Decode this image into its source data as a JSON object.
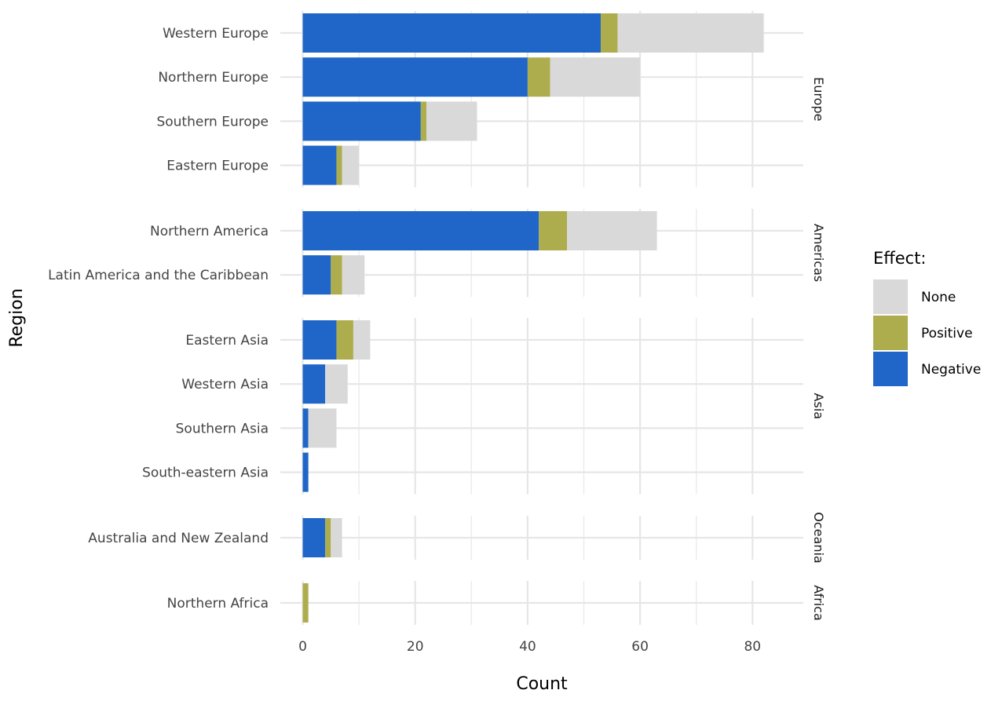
{
  "chart_data": {
    "type": "bar",
    "orientation": "horizontal",
    "stacked": true,
    "title": "",
    "xlabel": "Count",
    "ylabel": "Region",
    "xlim": [
      0,
      89
    ],
    "xticks": [
      0,
      20,
      40,
      60,
      80
    ],
    "grid": true,
    "legend": {
      "title": "Effect:",
      "placement": "right",
      "entries": [
        {
          "key": "none",
          "label": "None",
          "color": "#d9d9d9"
        },
        {
          "key": "positive",
          "label": "Positive",
          "color": "#adad4e"
        },
        {
          "key": "negative",
          "label": "Negative",
          "color": "#1f66c8"
        }
      ]
    },
    "stack_order": [
      "negative",
      "positive",
      "none"
    ],
    "facets": [
      {
        "label": "Europe",
        "rows": [
          {
            "category": "Western Europe",
            "negative": 53,
            "positive": 3,
            "none": 26
          },
          {
            "category": "Northern Europe",
            "negative": 40,
            "positive": 4,
            "none": 16
          },
          {
            "category": "Southern Europe",
            "negative": 21,
            "positive": 1,
            "none": 9
          },
          {
            "category": "Eastern Europe",
            "negative": 6,
            "positive": 1,
            "none": 3
          }
        ]
      },
      {
        "label": "Americas",
        "rows": [
          {
            "category": "Northern America",
            "negative": 42,
            "positive": 5,
            "none": 16
          },
          {
            "category": "Latin America and the Caribbean",
            "negative": 5,
            "positive": 2,
            "none": 4
          }
        ]
      },
      {
        "label": "Asia",
        "rows": [
          {
            "category": "Eastern Asia",
            "negative": 6,
            "positive": 3,
            "none": 3
          },
          {
            "category": "Western Asia",
            "negative": 4,
            "positive": 0,
            "none": 4
          },
          {
            "category": "Southern Asia",
            "negative": 1,
            "positive": 0,
            "none": 5
          },
          {
            "category": "South-eastern Asia",
            "negative": 1,
            "positive": 0,
            "none": 0
          }
        ]
      },
      {
        "label": "Oceania",
        "rows": [
          {
            "category": "Australia and New Zealand",
            "negative": 4,
            "positive": 1,
            "none": 2
          }
        ]
      },
      {
        "label": "Africa",
        "rows": [
          {
            "category": "Northern Africa",
            "negative": 0,
            "positive": 1,
            "none": 0
          }
        ]
      }
    ]
  }
}
